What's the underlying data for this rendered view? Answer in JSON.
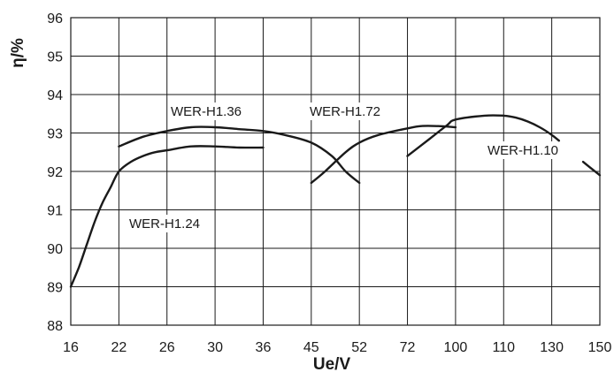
{
  "chart_data": {
    "type": "line",
    "title": "",
    "xlabel": "Ue/V",
    "ylabel": "η/%",
    "x_ticks": [
      "16",
      "22",
      "26",
      "30",
      "36",
      "45",
      "52",
      "72",
      "100",
      "110",
      "130",
      "150"
    ],
    "ylim": [
      88,
      96
    ],
    "y_ticks": [
      "88",
      "89",
      "90",
      "91",
      "92",
      "93",
      "94",
      "95",
      "96"
    ],
    "grid": true,
    "series": [
      {
        "name": "WER-H1.24",
        "points": [
          [
            16,
            89.0
          ],
          [
            17,
            89.5
          ],
          [
            18,
            90.1
          ],
          [
            19,
            90.7
          ],
          [
            20,
            91.2
          ],
          [
            21,
            91.6
          ],
          [
            22,
            92.0
          ],
          [
            23,
            92.25
          ],
          [
            24,
            92.4
          ],
          [
            25,
            92.5
          ],
          [
            26,
            92.55
          ],
          [
            28,
            92.65
          ],
          [
            30,
            92.65
          ],
          [
            33,
            92.62
          ],
          [
            36,
            92.62
          ]
        ]
      },
      {
        "name": "WER-H1.36",
        "points": [
          [
            22,
            92.65
          ],
          [
            24,
            92.9
          ],
          [
            26,
            93.05
          ],
          [
            28,
            93.15
          ],
          [
            30,
            93.15
          ],
          [
            33,
            93.1
          ],
          [
            36,
            93.05
          ],
          [
            40,
            92.95
          ],
          [
            45,
            92.75
          ],
          [
            48,
            92.4
          ],
          [
            50,
            92.0
          ],
          [
            52,
            91.7
          ]
        ]
      },
      {
        "name": "WER-H1.72",
        "points": [
          [
            45,
            91.7
          ],
          [
            47,
            92.0
          ],
          [
            50,
            92.5
          ],
          [
            52,
            92.75
          ],
          [
            60,
            92.95
          ],
          [
            72,
            93.12
          ],
          [
            80,
            93.18
          ],
          [
            90,
            93.18
          ],
          [
            100,
            93.15
          ]
        ]
      },
      {
        "name": "WER-H1.10",
        "points": [
          [
            72,
            92.4
          ],
          [
            85,
            92.85
          ],
          [
            95,
            93.2
          ],
          [
            100,
            93.35
          ],
          [
            106,
            93.45
          ],
          [
            110,
            93.45
          ],
          [
            115,
            93.4
          ],
          [
            120,
            93.3
          ],
          [
            125,
            93.15
          ],
          [
            130,
            92.95
          ],
          [
            133,
            92.8
          ]
        ]
      },
      {
        "name": "",
        "points": [
          [
            143,
            92.25
          ],
          [
            150,
            91.9
          ]
        ]
      }
    ]
  }
}
